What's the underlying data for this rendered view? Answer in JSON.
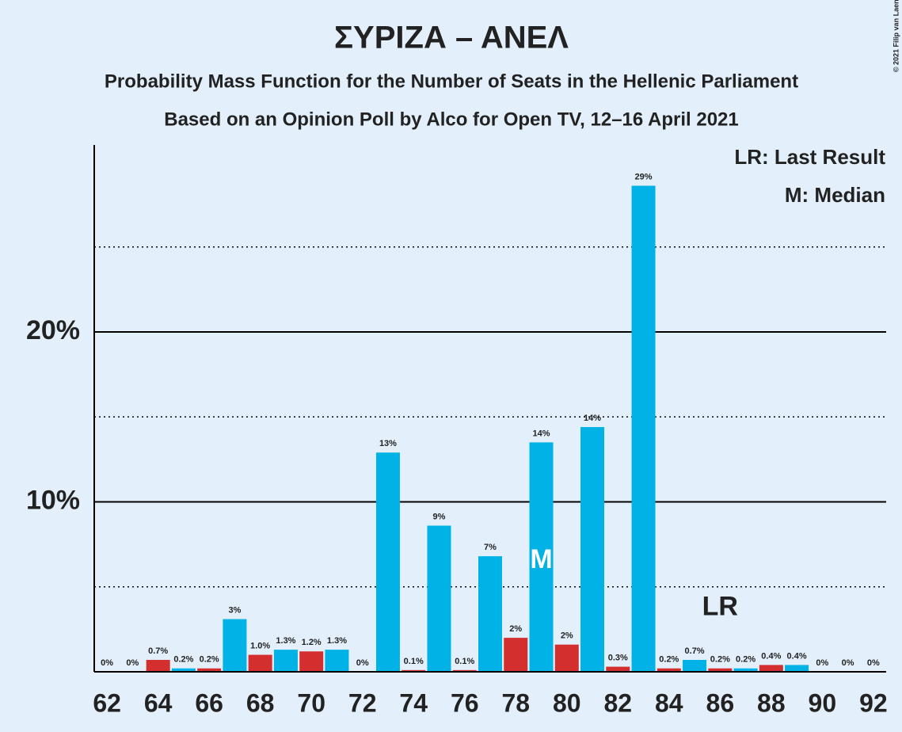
{
  "chart_data": {
    "type": "bar",
    "title": "ΣΥΡΙΖΑ – ΑΝΕΛ",
    "subtitle": "Probability Mass Function for the Number of Seats in the Hellenic Parliament",
    "subtitle2": "Based on an Opinion Poll by Alco for Open TV, 12–16 April 2021",
    "copyright": "© 2021 Filip van Laenen",
    "legend": [
      "LR: Last Result",
      "M: Median"
    ],
    "x": [
      62,
      63,
      64,
      65,
      66,
      67,
      68,
      69,
      70,
      71,
      72,
      73,
      74,
      75,
      76,
      77,
      78,
      79,
      80,
      81,
      82,
      83,
      84,
      85,
      86,
      87,
      88,
      89,
      90,
      91,
      92
    ],
    "values": [
      0,
      0,
      0.7,
      0.2,
      0.2,
      3.1,
      1.0,
      1.3,
      1.2,
      1.3,
      0,
      12.9,
      0.1,
      8.6,
      0.1,
      6.8,
      2.0,
      13.5,
      1.6,
      14.4,
      0.3,
      28.6,
      0.2,
      0.7,
      0.2,
      0.2,
      0.4,
      0.4,
      0,
      0,
      0
    ],
    "value_labels": [
      "0%",
      "0%",
      "0.7%",
      "0.2%",
      "0.2%",
      "3%",
      "1.0%",
      "1.3%",
      "1.2%",
      "1.3%",
      "0%",
      "13%",
      "0.1%",
      "9%",
      "0.1%",
      "7%",
      "2%",
      "14%",
      "2%",
      "14%",
      "0.3%",
      "29%",
      "0.2%",
      "0.7%",
      "0.2%",
      "0.2%",
      "0.4%",
      "0.4%",
      "0%",
      "0%",
      "0%"
    ],
    "colors": {
      "even": "#d32f2f",
      "odd": "#00b2e5"
    },
    "xlim": [
      61.5,
      92.5
    ],
    "xticks": [
      62,
      64,
      66,
      68,
      70,
      72,
      74,
      76,
      78,
      80,
      82,
      84,
      86,
      88,
      90,
      92
    ],
    "ylim": [
      0,
      31
    ],
    "yticks": [
      {
        "value": 10,
        "label": "10%"
      },
      {
        "value": 20,
        "label": "20%"
      }
    ],
    "minor_yticks": [
      5,
      15,
      25
    ],
    "grid": true,
    "median": {
      "x": 79,
      "label": "M"
    },
    "last_result": {
      "x": 86,
      "label": "LR"
    }
  }
}
